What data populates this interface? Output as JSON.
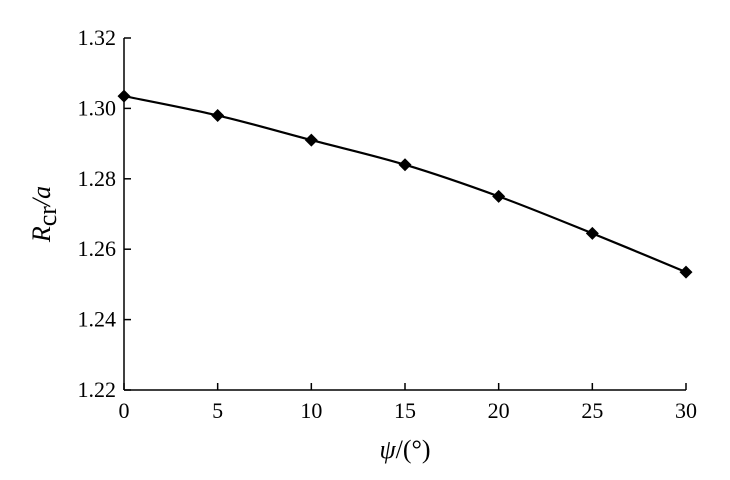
{
  "chart_data": {
    "type": "line",
    "xlabel": {
      "symbol": "ψ",
      "unit": "/(°)"
    },
    "ylabel": {
      "symbol": "R",
      "subscript": "cr",
      "rest": "/a"
    },
    "xlim": [
      0,
      30
    ],
    "ylim": [
      1.22,
      1.32
    ],
    "xticks": [
      "0",
      "5",
      "10",
      "15",
      "20",
      "25",
      "30"
    ],
    "yticks": [
      "1.22",
      "1.24",
      "1.26",
      "1.28",
      "1.30",
      "1.32"
    ],
    "grid": false,
    "series": [
      {
        "marker": "diamond",
        "color": "#000000",
        "x": [
          0,
          5,
          10,
          15,
          20,
          25,
          30
        ],
        "y": [
          1.3035,
          1.298,
          1.291,
          1.284,
          1.275,
          1.2645,
          1.2535
        ]
      }
    ]
  }
}
